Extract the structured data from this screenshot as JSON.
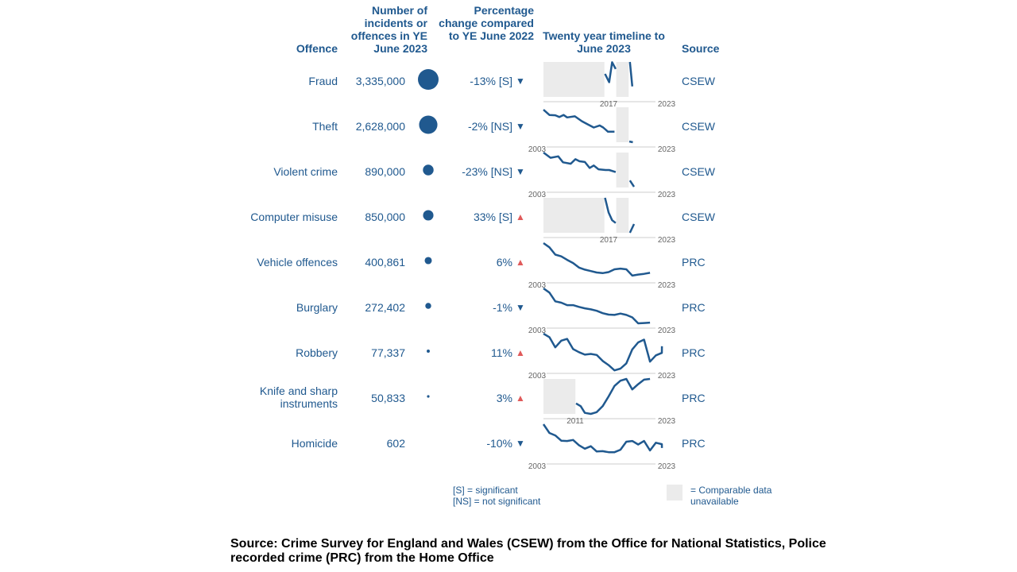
{
  "headers": {
    "offence": "Offence",
    "count": "Number of incidents or offences in YE June 2023",
    "change": "Percentage change compared to YE June 2022",
    "timeline": "Twenty year timeline to June 2023",
    "source": "Source"
  },
  "colors": {
    "text": "#20598f",
    "line": "#20598f",
    "bubble": "#20598f",
    "down_arrow": "#20598f",
    "up_arrow": "#e05a5a",
    "unavailable_fill": "#ebebeb",
    "axis": "#cccccc"
  },
  "chart_data": {
    "type": "line",
    "x_range": [
      2003,
      2023
    ],
    "rows": [
      {
        "offence": "Fraud",
        "count": "3,335,000",
        "count_value": 3335000,
        "change": "-13% [S]",
        "direction": "down",
        "arrow": "▼",
        "source": "CSEW",
        "start_label": "2017",
        "end_label": "2023",
        "unavailable": [
          [
            2003,
            2013.3
          ],
          [
            2015.3,
            2017.4
          ]
        ],
        "series": [
          [
            2013.4,
            0.66
          ],
          [
            2014.1,
            0.42
          ],
          [
            2014.6,
            0.99
          ],
          [
            2015.2,
            0.8
          ],
          [
            2017.6,
            1.0
          ],
          [
            2018.0,
            0.3
          ]
        ]
      },
      {
        "offence": "Theft",
        "count": "2,628,000",
        "count_value": 2628000,
        "change": "-2%  [NS]",
        "direction": "down",
        "arrow": "▼",
        "source": "CSEW",
        "start_label": "2003",
        "end_label": "2023",
        "unavailable": [
          [
            2015.3,
            2017.4
          ]
        ],
        "series": [
          [
            2003,
            0.93
          ],
          [
            2004,
            0.78
          ],
          [
            2005,
            0.77
          ],
          [
            2005.7,
            0.72
          ],
          [
            2006.4,
            0.78
          ],
          [
            2007,
            0.71
          ],
          [
            2008.3,
            0.74
          ],
          [
            2009.5,
            0.6
          ],
          [
            2010.5,
            0.51
          ],
          [
            2011.5,
            0.42
          ],
          [
            2012.5,
            0.48
          ],
          [
            2013.1,
            0.42
          ],
          [
            2013.9,
            0.3
          ],
          [
            2015,
            0.3
          ],
          [
            2017.5,
            0.02
          ],
          [
            2018.1,
            0.0
          ]
        ]
      },
      {
        "offence": "Violent crime",
        "count": "890,000",
        "count_value": 890000,
        "change": "-23%  [NS]",
        "direction": "down",
        "arrow": "▼",
        "source": "CSEW",
        "start_label": "2003",
        "end_label": "2023",
        "unavailable": [
          [
            2015.3,
            2017.4
          ]
        ],
        "series": [
          [
            2003,
            1.0
          ],
          [
            2004.2,
            0.85
          ],
          [
            2005.5,
            0.89
          ],
          [
            2006.3,
            0.72
          ],
          [
            2007.6,
            0.68
          ],
          [
            2008.4,
            0.81
          ],
          [
            2009.1,
            0.75
          ],
          [
            2010,
            0.73
          ],
          [
            2010.8,
            0.56
          ],
          [
            2011.5,
            0.63
          ],
          [
            2012.3,
            0.52
          ],
          [
            2013.5,
            0.5
          ],
          [
            2014.1,
            0.5
          ],
          [
            2015.2,
            0.44
          ],
          [
            2017.6,
            0.2
          ],
          [
            2018.3,
            0.02
          ]
        ]
      },
      {
        "offence": "Computer misuse",
        "count": "850,000",
        "count_value": 850000,
        "change": "33% [S]",
        "direction": "up",
        "arrow": "▲",
        "source": "CSEW",
        "start_label": "2017",
        "end_label": "2023",
        "unavailable": [
          [
            2003,
            2013.3
          ],
          [
            2015.3,
            2017.4
          ]
        ],
        "series": [
          [
            2013.4,
            1.0
          ],
          [
            2014,
            0.58
          ],
          [
            2014.6,
            0.36
          ],
          [
            2015.2,
            0.28
          ],
          [
            2017.6,
            0.0
          ],
          [
            2018.3,
            0.25
          ]
        ]
      },
      {
        "offence": "Vehicle offences",
        "count": "400,861",
        "count_value": 400861,
        "change": "6%",
        "direction": "up",
        "arrow": "▲",
        "source": "PRC",
        "start_label": "2003",
        "end_label": "2023",
        "unavailable": [],
        "series": [
          [
            2003,
            1.0
          ],
          [
            2004,
            0.88
          ],
          [
            2005,
            0.67
          ],
          [
            2006,
            0.62
          ],
          [
            2007,
            0.52
          ],
          [
            2008,
            0.43
          ],
          [
            2009,
            0.3
          ],
          [
            2010,
            0.24
          ],
          [
            2011,
            0.2
          ],
          [
            2012,
            0.16
          ],
          [
            2013,
            0.14
          ],
          [
            2014,
            0.17
          ],
          [
            2015,
            0.25
          ],
          [
            2016,
            0.27
          ],
          [
            2017,
            0.25
          ],
          [
            2018,
            0.07
          ],
          [
            2019,
            0.1
          ],
          [
            2020,
            0.12
          ],
          [
            2021,
            0.15
          ]
        ]
      },
      {
        "offence": "Burglary",
        "count": "272,402",
        "count_value": 272402,
        "change": "-1%",
        "direction": "down",
        "arrow": "▼",
        "source": "PRC",
        "start_label": "2003",
        "end_label": "2023",
        "unavailable": [],
        "series": [
          [
            2003,
            1.0
          ],
          [
            2004,
            0.88
          ],
          [
            2005,
            0.63
          ],
          [
            2006,
            0.59
          ],
          [
            2007,
            0.52
          ],
          [
            2008,
            0.52
          ],
          [
            2009,
            0.47
          ],
          [
            2010,
            0.43
          ],
          [
            2011,
            0.4
          ],
          [
            2012,
            0.36
          ],
          [
            2013,
            0.29
          ],
          [
            2014,
            0.25
          ],
          [
            2015,
            0.24
          ],
          [
            2016,
            0.28
          ],
          [
            2017,
            0.24
          ],
          [
            2018,
            0.17
          ],
          [
            2019,
            0.0
          ],
          [
            2020,
            0.01
          ],
          [
            2021,
            0.02
          ]
        ]
      },
      {
        "offence": "Robbery",
        "count": "77,337",
        "count_value": 77337,
        "change": "11%",
        "direction": "up",
        "arrow": "▲",
        "source": "PRC",
        "start_label": "2003",
        "end_label": "2023",
        "unavailable": [],
        "series": [
          [
            2003,
            1.0
          ],
          [
            2004,
            0.9
          ],
          [
            2005,
            0.61
          ],
          [
            2006,
            0.8
          ],
          [
            2007,
            0.85
          ],
          [
            2008,
            0.56
          ],
          [
            2009,
            0.47
          ],
          [
            2010,
            0.4
          ],
          [
            2011,
            0.42
          ],
          [
            2012,
            0.39
          ],
          [
            2013,
            0.22
          ],
          [
            2014,
            0.1
          ],
          [
            2015,
            -0.05
          ],
          [
            2016,
            0.0
          ],
          [
            2017,
            0.15
          ],
          [
            2018,
            0.55
          ],
          [
            2019,
            0.75
          ],
          [
            2020,
            0.83
          ],
          [
            2021,
            0.2
          ],
          [
            2022,
            0.38
          ],
          [
            2023,
            0.45
          ],
          [
            2024,
            0.64
          ]
        ]
      },
      {
        "offence": "Knife and sharp instruments",
        "count": "50,833",
        "count_value": 50833,
        "change": "3%",
        "direction": "up",
        "arrow": "▲",
        "source": "PRC",
        "start_label": "2011",
        "end_label": "2023",
        "unavailable": [
          [
            2003,
            2008.4
          ]
        ],
        "series": [
          [
            2008.5,
            0.3
          ],
          [
            2009.3,
            0.22
          ],
          [
            2010,
            0.03
          ],
          [
            2011,
            0.0
          ],
          [
            2012,
            0.05
          ],
          [
            2013,
            0.22
          ],
          [
            2014,
            0.5
          ],
          [
            2015,
            0.8
          ],
          [
            2016,
            0.95
          ],
          [
            2017,
            1.0
          ],
          [
            2018,
            0.7
          ],
          [
            2019,
            0.85
          ],
          [
            2020,
            0.98
          ],
          [
            2021,
            1.0
          ]
        ]
      },
      {
        "offence": "Homicide",
        "count": "602",
        "count_value": 602,
        "change": "-10%",
        "direction": "down",
        "arrow": "▼",
        "source": "PRC",
        "start_label": "2003",
        "end_label": "2023",
        "unavailable": [],
        "series": [
          [
            2003,
            1.0
          ],
          [
            2004,
            0.75
          ],
          [
            2005,
            0.68
          ],
          [
            2006,
            0.53
          ],
          [
            2007,
            0.52
          ],
          [
            2008,
            0.55
          ],
          [
            2009,
            0.4
          ],
          [
            2010,
            0.3
          ],
          [
            2011,
            0.37
          ],
          [
            2012,
            0.22
          ],
          [
            2013,
            0.23
          ],
          [
            2014,
            0.2
          ],
          [
            2015,
            0.2
          ],
          [
            2016,
            0.27
          ],
          [
            2017,
            0.5
          ],
          [
            2018,
            0.52
          ],
          [
            2019,
            0.42
          ],
          [
            2020,
            0.52
          ],
          [
            2021,
            0.25
          ],
          [
            2022,
            0.47
          ],
          [
            2023,
            0.43
          ],
          [
            2024,
            0.32
          ]
        ]
      }
    ]
  },
  "legend": {
    "significant": "[S] = significant",
    "not_significant": "[NS] = not significant",
    "unavailable": "= Comparable data unavailable"
  },
  "footer": "Source: Crime Survey for England and Wales (CSEW) from the Office for National Statistics, Police recorded crime (PRC) from the Home Office"
}
